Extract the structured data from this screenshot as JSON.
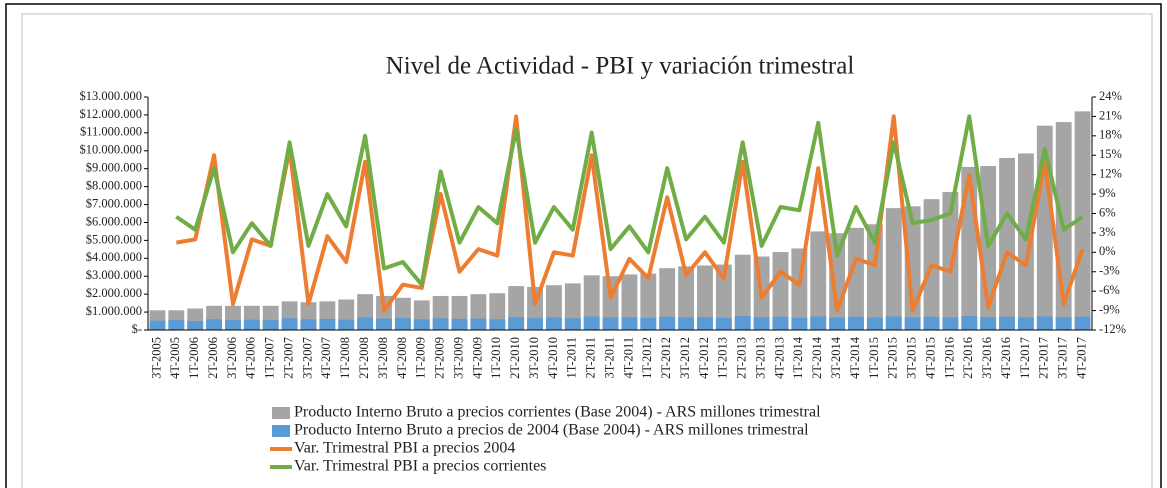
{
  "chart_data": {
    "type": "combo",
    "title": "Nivel de Actividad - PBI y variación trimestral",
    "categories": [
      "3T-2005",
      "4T-2005",
      "1T-2006",
      "2T-2006",
      "3T-2006",
      "4T-2006",
      "1T-2007",
      "2T-2007",
      "3T-2007",
      "4T-2007",
      "1T-2008",
      "2T-2008",
      "3T-2008",
      "4T-2008",
      "1T-2009",
      "2T-2009",
      "3T-2009",
      "4T-2009",
      "1T-2010",
      "2T-2010",
      "3T-2010",
      "4T-2010",
      "1T-2011",
      "2T-2011",
      "3T-2011",
      "4T-2011",
      "1T-2012",
      "2T-2012",
      "3T-2012",
      "4T-2012",
      "1T-2013",
      "2T-2013",
      "3T-2013",
      "4T-2013",
      "1T-2014",
      "2T-2014",
      "3T-2014",
      "4T-2014",
      "1T-2015",
      "2T-2015",
      "3T-2015",
      "4T-2015",
      "1T-2016",
      "2T-2016",
      "3T-2016",
      "4T-2016",
      "1T-2017",
      "2T-2017",
      "3T-2017",
      "4T-2017"
    ],
    "series": [
      {
        "name": "Producto Interno Bruto a precios corrientes (Base 2004) - ARS millones trimestral",
        "type": "bar",
        "color": "#a5a5a5",
        "values": [
          1100000,
          1100000,
          1200000,
          1350000,
          1350000,
          1350000,
          1350000,
          1600000,
          1550000,
          1600000,
          1700000,
          2000000,
          1900000,
          1800000,
          1650000,
          1900000,
          1900000,
          2000000,
          2050000,
          2450000,
          2400000,
          2500000,
          2600000,
          3050000,
          3000000,
          3100000,
          3150000,
          3450000,
          3550000,
          3600000,
          3650000,
          4200000,
          4100000,
          4350000,
          4550000,
          5500000,
          5400000,
          5700000,
          5900000,
          6800000,
          6900000,
          7300000,
          7700000,
          9100000,
          9150000,
          9600000,
          9850000,
          11400000,
          11600000,
          12200000
        ]
      },
      {
        "name": "Producto Interno Bruto a precios de 2004 (Base 2004) - ARS millones trimestral",
        "type": "bar",
        "color": "#5b9bd5",
        "values": [
          520000,
          550000,
          500000,
          600000,
          550000,
          580000,
          550000,
          650000,
          600000,
          620000,
          580000,
          700000,
          640000,
          660000,
          600000,
          650000,
          620000,
          640000,
          600000,
          720000,
          660000,
          700000,
          660000,
          760000,
          700000,
          720000,
          680000,
          740000,
          700000,
          720000,
          680000,
          770000,
          720000,
          740000,
          680000,
          760000,
          700000,
          740000,
          700000,
          760000,
          700000,
          740000,
          700000,
          770000,
          720000,
          740000,
          700000,
          760000,
          720000,
          740000
        ]
      },
      {
        "name": "Var. Trimestral PBI a precios 2004",
        "type": "line",
        "axis": "y2",
        "color": "#ed7d31",
        "values": [
          null,
          1.5,
          2,
          15,
          -8,
          2,
          1,
          16,
          -8,
          2.5,
          -1.5,
          14,
          -9,
          -5,
          -5.5,
          9,
          -3,
          0.5,
          -0.5,
          21,
          -8,
          0,
          -0.5,
          15,
          -7,
          -1,
          -4,
          8.5,
          -3.5,
          0,
          -4,
          14,
          -7,
          -3,
          -5,
          13,
          -9,
          -1,
          -2,
          21,
          -9,
          -2,
          -3,
          12,
          -8.5,
          0,
          -2,
          14,
          -8,
          0.5
        ]
      },
      {
        "name": "Var. Trimestral PBI a precios corrientes",
        "type": "line",
        "axis": "y2",
        "color": "#70ad47",
        "values": [
          null,
          5.5,
          3.5,
          13,
          0,
          4.5,
          1,
          17,
          1,
          9,
          4,
          18,
          -2.5,
          -1.5,
          -5,
          12.5,
          1.5,
          7,
          4.5,
          19,
          1.5,
          7,
          3.5,
          18.5,
          0.5,
          4,
          0,
          13,
          2,
          5.5,
          1.5,
          17,
          1,
          7,
          6.5,
          20,
          -0.5,
          7,
          1.5,
          17,
          4.5,
          5,
          6,
          21,
          1,
          6,
          2,
          16,
          3.5,
          5.5
        ]
      }
    ],
    "ylim": [
      0,
      13000000
    ],
    "yticks": [
      {
        "value": 0,
        "label": "$-"
      },
      {
        "value": 1000000,
        "label": "$1.000.000"
      },
      {
        "value": 2000000,
        "label": "$2.000.000"
      },
      {
        "value": 3000000,
        "label": "$3.000.000"
      },
      {
        "value": 4000000,
        "label": "$4.000.000"
      },
      {
        "value": 5000000,
        "label": "$5.000.000"
      },
      {
        "value": 6000000,
        "label": "$6.000.000"
      },
      {
        "value": 7000000,
        "label": "$7.000.000"
      },
      {
        "value": 8000000,
        "label": "$8.000.000"
      },
      {
        "value": 9000000,
        "label": "$9.000.000"
      },
      {
        "value": 10000000,
        "label": "$10.000.000"
      },
      {
        "value": 11000000,
        "label": "$11.000.000"
      },
      {
        "value": 12000000,
        "label": "$12.000.000"
      },
      {
        "value": 13000000,
        "label": "$13.000.000"
      }
    ],
    "y2lim": [
      -12,
      24
    ],
    "y2ticks": [
      {
        "value": -12,
        "label": "-12%"
      },
      {
        "value": -9,
        "label": "-9%"
      },
      {
        "value": -6,
        "label": "-6%"
      },
      {
        "value": -3,
        "label": "-3%"
      },
      {
        "value": 0,
        "label": "0%"
      },
      {
        "value": 3,
        "label": "3%"
      },
      {
        "value": 6,
        "label": "6%"
      },
      {
        "value": 9,
        "label": "9%"
      },
      {
        "value": 12,
        "label": "12%"
      },
      {
        "value": 15,
        "label": "15%"
      },
      {
        "value": 18,
        "label": "18%"
      },
      {
        "value": 21,
        "label": "21%"
      },
      {
        "value": 24,
        "label": "24%"
      }
    ],
    "legend": "bottom"
  }
}
